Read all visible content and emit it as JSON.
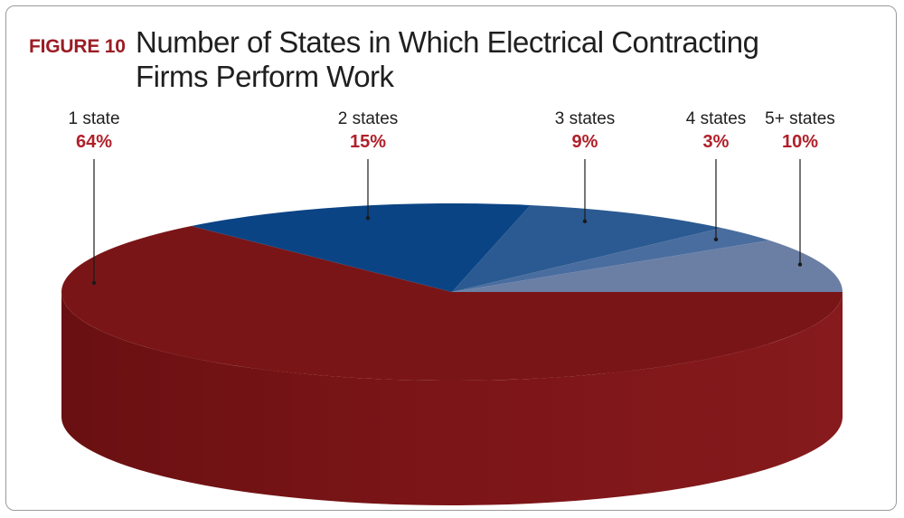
{
  "figure_label": "FIGURE 10",
  "chart_data": {
    "type": "pie",
    "title": "Number of States in Which Electrical Contracting Firms Perform Work",
    "categories": [
      "1 state",
      "2 states",
      "3 states",
      "4 states",
      "5+ states"
    ],
    "values": [
      64,
      15,
      9,
      3,
      10
    ],
    "value_labels": [
      "64%",
      "15%",
      "9%",
      "3%",
      "10%"
    ],
    "colors": [
      "#7a1517",
      "#0b4484",
      "#2a5a91",
      "#4a6d9f",
      "#6b7fa5"
    ],
    "legend": "none"
  }
}
